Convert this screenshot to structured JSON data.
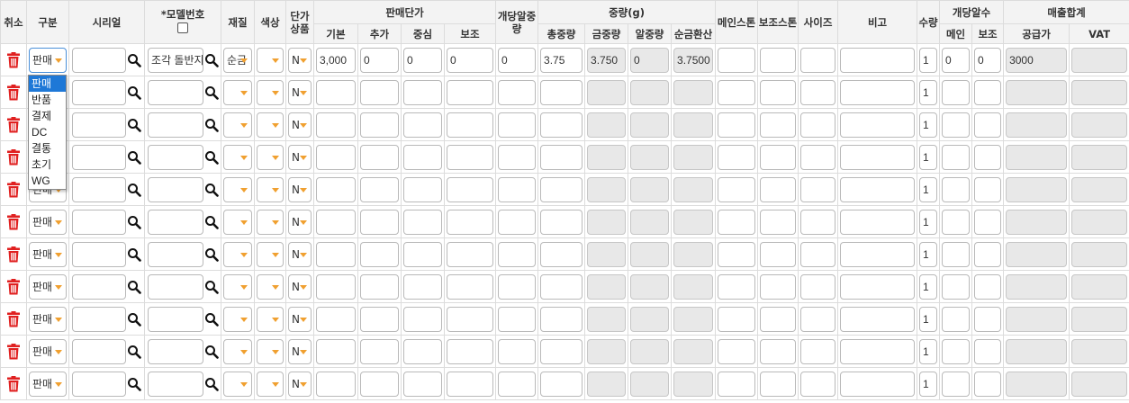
{
  "headers": {
    "cancel": "취소",
    "type": "구분",
    "serial": "시리얼",
    "model": "*모델번호",
    "material": "재질",
    "color": "색상",
    "unit_price_product": "단가상품",
    "sale_price": "판매단가",
    "sale_price_sub": [
      "기본",
      "추가",
      "중심",
      "보조"
    ],
    "stone_weight_each": "개당알중량",
    "weight": "중량(g)",
    "weight_sub": [
      "총중량",
      "금중량",
      "알중량",
      "순금환산"
    ],
    "main_stone": "메인스톤",
    "sub_stone": "보조스톤",
    "size": "사이즈",
    "note": "비고",
    "quantity": "수량",
    "stone_count_each": "개당알수",
    "stone_count_sub": [
      "메인",
      "보조"
    ],
    "sales_total": "매출합계",
    "sales_total_sub": [
      "공급가",
      "VAT"
    ]
  },
  "colors": {
    "trash": "#e02020",
    "caret": "#f0a030",
    "focus": "#4a8fd9",
    "selected_option": "#1e78d7",
    "readonly_bg": "#e8e8e8"
  },
  "icons": {
    "delete": "trash-icon",
    "search": "search-icon",
    "dropdown": "chevron-down-icon"
  },
  "first_row": {
    "type": "판매",
    "serial": "",
    "model": "조각 돌반지",
    "material": "순금",
    "color": "",
    "unit_price_product": "N",
    "base": "3,000",
    "extra": "0",
    "center": "0",
    "sub": "0",
    "stone_weight_each": "0",
    "total_weight": "3.75",
    "gold_weight": "3.750",
    "stone_weight": "0",
    "pure_gold": "3.7500",
    "quantity": "1",
    "main_count": "0",
    "sub_count": "0",
    "supply_price": "3000"
  },
  "rows": [
    {
      "type": "판매",
      "unit_price_product": "N",
      "quantity": "1"
    },
    {
      "type": "판매",
      "unit_price_product": "N",
      "quantity": "1"
    },
    {
      "type": "판매",
      "unit_price_product": "N",
      "quantity": "1"
    },
    {
      "type": "판매",
      "unit_price_product": "N",
      "quantity": "1"
    },
    {
      "type": "판매",
      "unit_price_product": "N",
      "quantity": "1"
    },
    {
      "type": "판매",
      "unit_price_product": "N",
      "quantity": "1"
    },
    {
      "type": "판매",
      "unit_price_product": "N",
      "quantity": "1"
    },
    {
      "type": "판매",
      "unit_price_product": "N",
      "quantity": "1"
    },
    {
      "type": "판매",
      "unit_price_product": "N",
      "quantity": "1"
    },
    {
      "type": "판매",
      "unit_price_product": "N",
      "quantity": "1"
    }
  ],
  "type_dropdown": {
    "options": [
      "판매",
      "반품",
      "결제",
      "DC",
      "결통",
      "초기",
      "WG"
    ],
    "selected": "판매"
  }
}
